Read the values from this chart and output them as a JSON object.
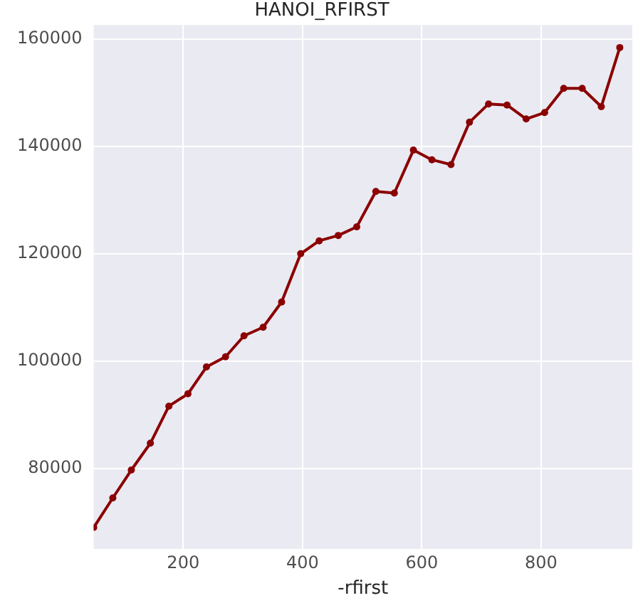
{
  "chart_data": {
    "type": "line",
    "title": "HANOI_RFIRST",
    "xlabel": "-rfirst",
    "x": [
      50,
      82,
      113,
      145,
      176,
      208,
      239,
      271,
      302,
      334,
      365,
      397,
      428,
      460,
      491,
      523,
      554,
      586,
      617,
      649,
      680,
      712,
      743,
      775,
      806,
      838,
      869,
      901,
      932
    ],
    "series": [
      {
        "color": "#8b0000",
        "values": [
          69000,
          74500,
          79700,
          84700,
          91600,
          93900,
          98900,
          100800,
          104700,
          106300,
          111000,
          120000,
          122400,
          123400,
          125000,
          131600,
          131300,
          139300,
          137500,
          136600,
          144500,
          147900,
          147700,
          145100,
          146300,
          150800,
          150800,
          147400,
          158400
        ]
      }
    ],
    "xlim": [
      50,
      953
    ],
    "xticks": [
      200,
      400,
      600,
      800
    ],
    "ylim": [
      65000,
      162600
    ],
    "yticks": [
      80000,
      100000,
      120000,
      140000,
      160000
    ],
    "grid": true,
    "legend": false,
    "marker": "circle",
    "line_style": "solid"
  }
}
